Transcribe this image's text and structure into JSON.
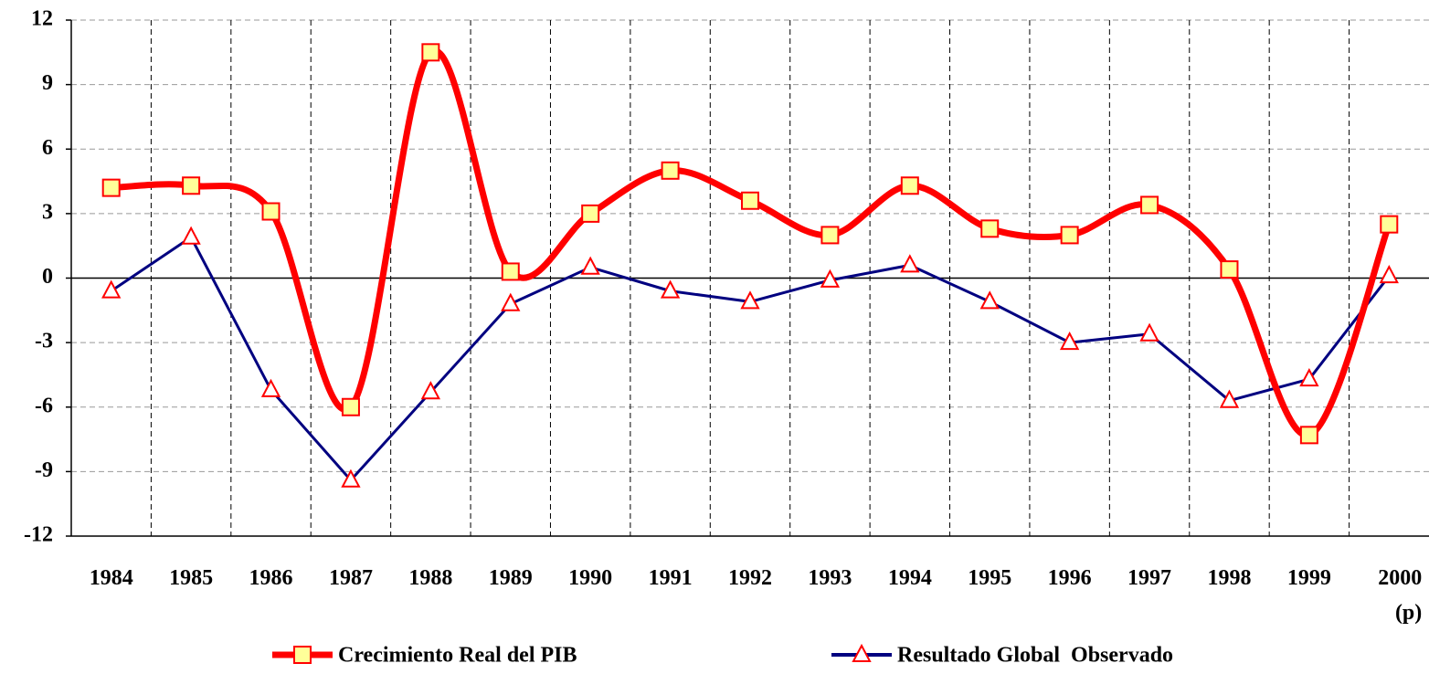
{
  "chart_data": {
    "type": "line",
    "categories": [
      "1984",
      "1985",
      "1986",
      "1987",
      "1988",
      "1989",
      "1990",
      "1991",
      "1992",
      "1993",
      "1994",
      "1995",
      "1996",
      "1997",
      "1998",
      "1999",
      "2000\n(p)"
    ],
    "series": [
      {
        "name": "Crecimiento Real del PIB",
        "color": "#ff0000",
        "marker_fill": "#ffff99",
        "marker": "square",
        "smooth": true,
        "values": [
          4.2,
          4.3,
          3.1,
          -6.0,
          10.5,
          0.3,
          3.0,
          5.0,
          3.6,
          2.0,
          4.3,
          2.3,
          2.0,
          3.4,
          0.4,
          -7.3,
          2.5
        ]
      },
      {
        "name": "Resultado Global  Observado",
        "color": "#000080",
        "marker_fill": "#ffffff",
        "marker": "triangle",
        "smooth": false,
        "values": [
          -0.6,
          1.9,
          -5.2,
          -9.4,
          -5.3,
          -1.2,
          0.5,
          -0.6,
          -1.1,
          -0.1,
          0.6,
          -1.1,
          -3.0,
          -2.6,
          -5.7,
          -4.7,
          0.1
        ]
      }
    ],
    "ylim": [
      -12,
      12
    ],
    "yticks": [
      -12,
      -9,
      -6,
      -3,
      0,
      3,
      6,
      9,
      12
    ],
    "grid": true,
    "legend": "bottom"
  }
}
